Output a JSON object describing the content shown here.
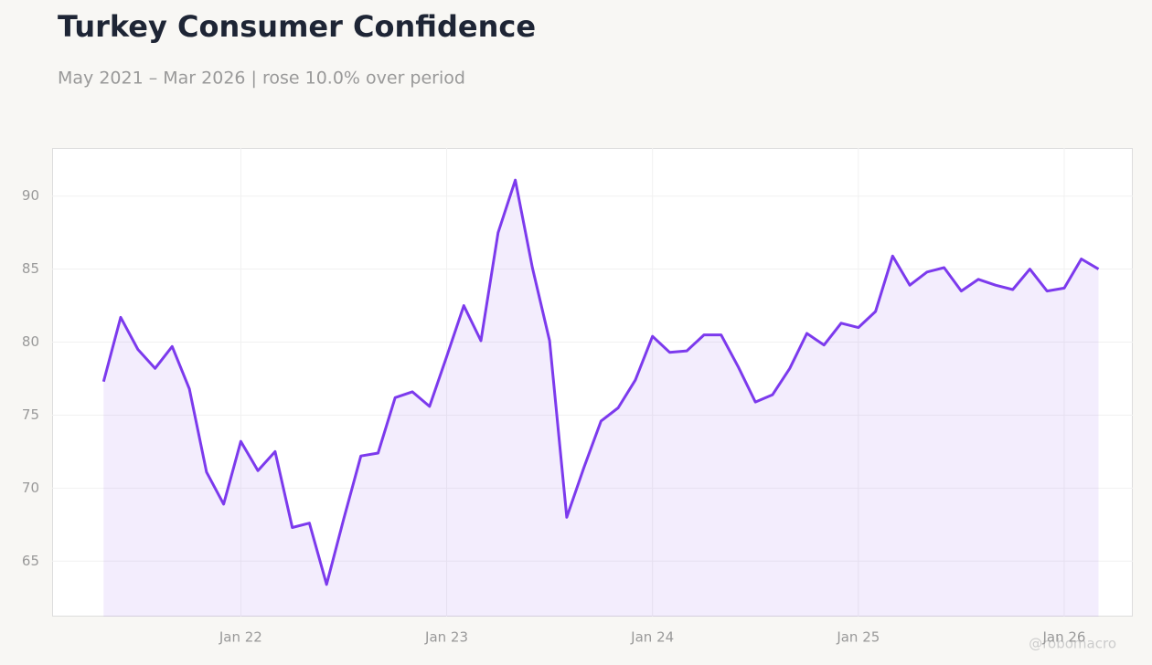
{
  "chart_data": {
    "type": "line",
    "title": "Turkey Consumer Confidence",
    "subtitle": "May 2021 – Mar 2026 | rose 10.0% over period",
    "watermark": "@robomacro",
    "color": "#7c3aed",
    "grid": true,
    "x": [
      "2021-05",
      "2021-06",
      "2021-07",
      "2021-08",
      "2021-09",
      "2021-10",
      "2021-11",
      "2021-12",
      "2022-01",
      "2022-02",
      "2022-03",
      "2022-04",
      "2022-05",
      "2022-06",
      "2022-07",
      "2022-08",
      "2022-09",
      "2022-10",
      "2022-11",
      "2022-12",
      "2023-01",
      "2023-02",
      "2023-03",
      "2023-04",
      "2023-05",
      "2023-06",
      "2023-07",
      "2023-08",
      "2023-09",
      "2023-10",
      "2023-11",
      "2023-12",
      "2024-01",
      "2024-02",
      "2024-03",
      "2024-04",
      "2024-05",
      "2024-06",
      "2024-07",
      "2024-08",
      "2024-09",
      "2024-10",
      "2024-11",
      "2024-12",
      "2025-01",
      "2025-02",
      "2025-03",
      "2025-04",
      "2025-05",
      "2025-06",
      "2025-07",
      "2025-08",
      "2025-09",
      "2025-10",
      "2025-11",
      "2025-12",
      "2026-01",
      "2026-02",
      "2026-03"
    ],
    "values": [
      77.3,
      81.7,
      79.5,
      78.2,
      79.7,
      76.8,
      71.1,
      68.9,
      73.2,
      71.2,
      72.5,
      67.3,
      67.6,
      63.4,
      67.9,
      72.2,
      72.4,
      76.2,
      76.6,
      75.6,
      79.0,
      82.5,
      80.1,
      87.5,
      91.1,
      85.1,
      80.1,
      68.0,
      71.4,
      74.6,
      75.5,
      77.4,
      80.4,
      79.3,
      79.4,
      80.5,
      80.5,
      78.3,
      75.9,
      76.4,
      78.2,
      80.6,
      79.8,
      81.3,
      81.0,
      82.1,
      85.9,
      83.9,
      84.8,
      85.1,
      83.5,
      84.3,
      83.9,
      83.6,
      85.0,
      83.5,
      83.7,
      85.7,
      85.0
    ],
    "xlim": [
      "2021-02",
      "2026-05"
    ],
    "xticks": [
      {
        "value": "2022-01",
        "label": "Jan 22"
      },
      {
        "value": "2023-01",
        "label": "Jan 23"
      },
      {
        "value": "2024-01",
        "label": "Jan 24"
      },
      {
        "value": "2025-01",
        "label": "Jan 25"
      },
      {
        "value": "2026-01",
        "label": "Jan 26"
      }
    ],
    "ylim": [
      61.2,
      93.3
    ],
    "yticks": [
      65,
      70,
      75,
      80,
      85,
      90
    ]
  }
}
